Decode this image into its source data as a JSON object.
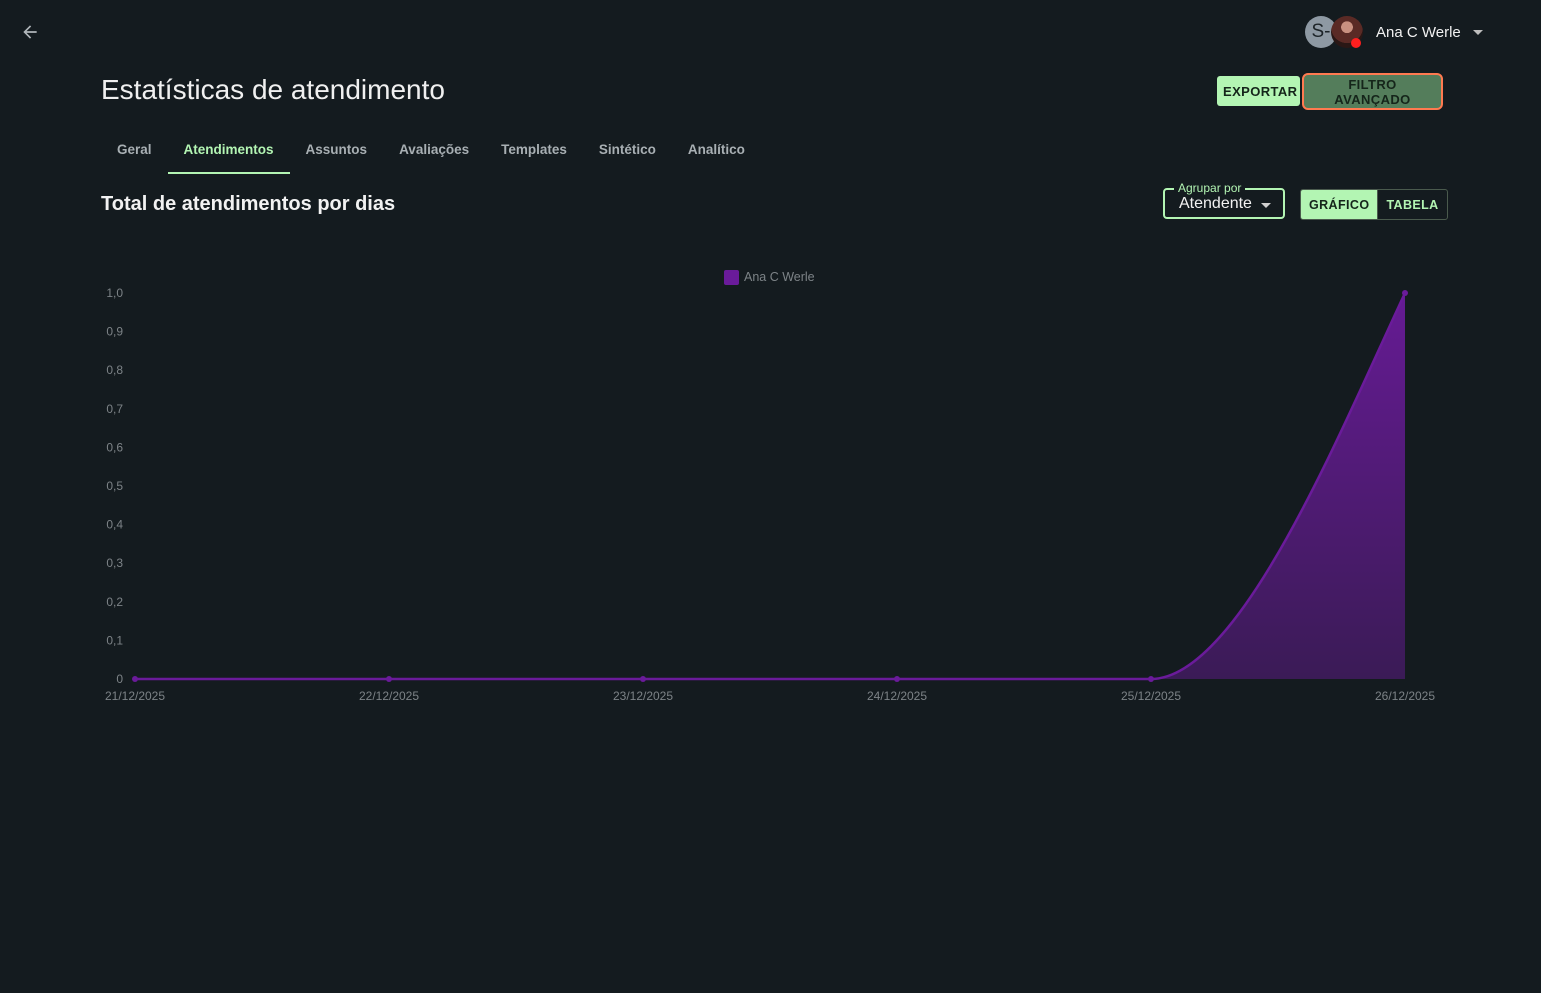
{
  "header": {
    "avatar_initial": "S-",
    "user_name": "Ana C Werle"
  },
  "page": {
    "title": "Estatísticas de atendimento",
    "export_label": "EXPORTAR",
    "filter_label": "FILTRO AVANÇADO"
  },
  "tabs": [
    {
      "label": "Geral"
    },
    {
      "label": "Atendimentos"
    },
    {
      "label": "Assuntos"
    },
    {
      "label": "Avaliações"
    },
    {
      "label": "Templates"
    },
    {
      "label": "Sintético"
    },
    {
      "label": "Analítico"
    }
  ],
  "active_tab": "Atendimentos",
  "section": {
    "title": "Total de atendimentos por dias",
    "group_by_label": "Agrupar por",
    "group_by_value": "Atendente",
    "view_chart_label": "GRÁFICO",
    "view_table_label": "TABELA",
    "active_view": "GRÁFICO"
  },
  "colors": {
    "accent": "#b3f5b3",
    "series": "#6a1b9a",
    "background": "#141b1f"
  },
  "chart_data": {
    "type": "area",
    "categories": [
      "21/12/2025",
      "22/12/2025",
      "23/12/2025",
      "24/12/2025",
      "25/12/2025",
      "26/12/2025"
    ],
    "series": [
      {
        "name": "Ana C Werle",
        "values": [
          0,
          0,
          0,
          0,
          0,
          1
        ]
      }
    ],
    "ylim": [
      0,
      1
    ],
    "yticks": [
      "0",
      "0,1",
      "0,2",
      "0,3",
      "0,4",
      "0,5",
      "0,6",
      "0,7",
      "0,8",
      "0,9",
      "1,0"
    ],
    "legend_position": "top-center",
    "grid": false
  }
}
